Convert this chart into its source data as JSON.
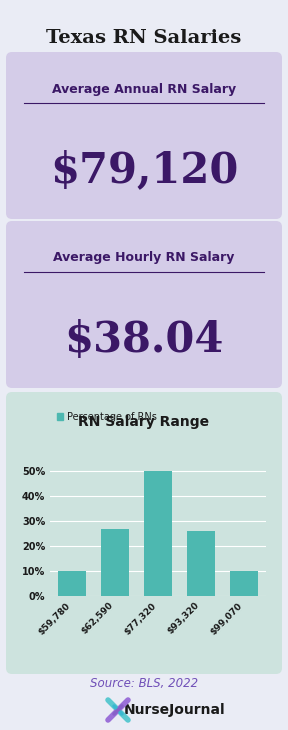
{
  "title": "Texas RN Salaries",
  "bg_color": "#eaecf5",
  "card1_bg": "#d4cce8",
  "card1_label": "Average Annual RN Salary",
  "card1_value": "$79,120",
  "card1_color": "#3b1866",
  "card2_bg": "#d4cce8",
  "card2_label": "Average Hourly RN Salary",
  "card2_value": "$38.04",
  "card2_color": "#3b1866",
  "chart_bg": "#cde3de",
  "chart_title": "RN Salary Range",
  "chart_legend": "Percentage of RNs",
  "bar_color": "#4db8b0",
  "bar_categories": [
    "$59,780",
    "$62,590",
    "$77,320",
    "$93,320",
    "$99,070"
  ],
  "bar_values": [
    10,
    27,
    50,
    26,
    10
  ],
  "ytick_labels": [
    "0%",
    "10%",
    "20%",
    "30%",
    "40%",
    "50%"
  ],
  "ytick_values": [
    0,
    10,
    20,
    30,
    40,
    50
  ],
  "source_text": "Source: BLS, 2022",
  "source_color": "#7050b8",
  "logo_text": "NurseJournal",
  "logo_color": "#1a1a1a",
  "title_color": "#1a1a1a",
  "chart_title_color": "#1a1a1a"
}
